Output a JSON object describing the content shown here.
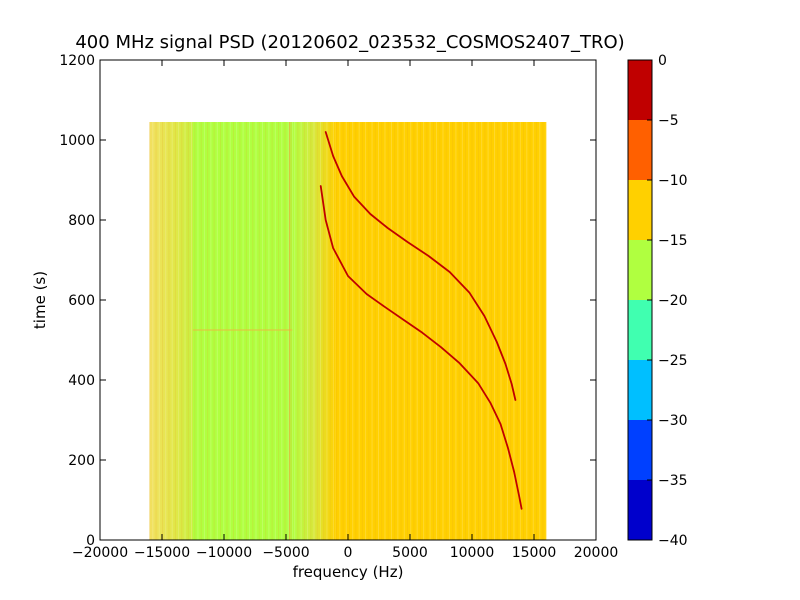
{
  "chart_data": {
    "type": "heatmap",
    "title": "400 MHz signal PSD (20120602_023532_COSMOS2407_TRO)",
    "xlabel": "frequency (Hz)",
    "ylabel": "time (s)",
    "xlim": [
      -20000,
      20000
    ],
    "ylim": [
      0,
      1200
    ],
    "x_ticks": [
      -20000,
      -15000,
      -10000,
      -5000,
      0,
      5000,
      10000,
      15000,
      20000
    ],
    "x_tick_labels": [
      "−20000",
      "−15000",
      "−10000",
      "−5000",
      "0",
      "5000",
      "10000",
      "15000",
      "20000"
    ],
    "y_ticks": [
      0,
      200,
      400,
      600,
      800,
      1000,
      1200
    ],
    "y_tick_labels": [
      "0",
      "200",
      "400",
      "600",
      "800",
      "1000",
      "1200"
    ],
    "grid": false,
    "data_extent": {
      "x": [
        -16000,
        16000
      ],
      "y": [
        0,
        1045
      ]
    },
    "colorbar": {
      "min": -40,
      "max": 0,
      "levels": [
        -40,
        -35,
        -30,
        -25,
        -20,
        -15,
        -10,
        -5,
        0
      ],
      "tick_labels": [
        "−40",
        "−35",
        "−30",
        "−25",
        "−20",
        "−15",
        "−10",
        "−5",
        "0"
      ],
      "colors": [
        "#0000cc",
        "#0040ff",
        "#00bfff",
        "#40ffb0",
        "#b0ff40",
        "#ffd000",
        "#ff6000",
        "#c00000"
      ]
    },
    "background_regions": [
      {
        "x": [
          -16000,
          -12500
        ],
        "level": -14,
        "color": "#f0e050",
        "note": "yellow-green gradient"
      },
      {
        "x": [
          -12500,
          -4500
        ],
        "level": -17,
        "color": "#b0ff40"
      },
      {
        "x": [
          -4500,
          -1000
        ],
        "level": -14,
        "color": "#e6e040",
        "note": "transition"
      },
      {
        "x": [
          -1000,
          16000
        ],
        "level": -12,
        "color": "#ffd000"
      }
    ],
    "series": [
      {
        "color": "#c00000",
        "x": [
          -2200,
          -1800,
          -1200,
          0,
          1500,
          3000,
          4500,
          6000,
          7500,
          9000,
          10500,
          11500,
          12300,
          12900,
          13400,
          13800,
          14000
        ],
        "y": [
          885,
          800,
          730,
          660,
          615,
          582,
          550,
          518,
          482,
          442,
          392,
          342,
          290,
          230,
          170,
          110,
          78
        ]
      },
      {
        "color": "#c00000",
        "x": [
          -1800,
          -1200,
          -500,
          500,
          1800,
          3200,
          4800,
          6500,
          8200,
          9800,
          11000,
          12000,
          12700,
          13200,
          13500
        ],
        "y": [
          1020,
          960,
          910,
          858,
          815,
          780,
          745,
          710,
          670,
          618,
          560,
          495,
          440,
          390,
          350
        ]
      }
    ]
  }
}
